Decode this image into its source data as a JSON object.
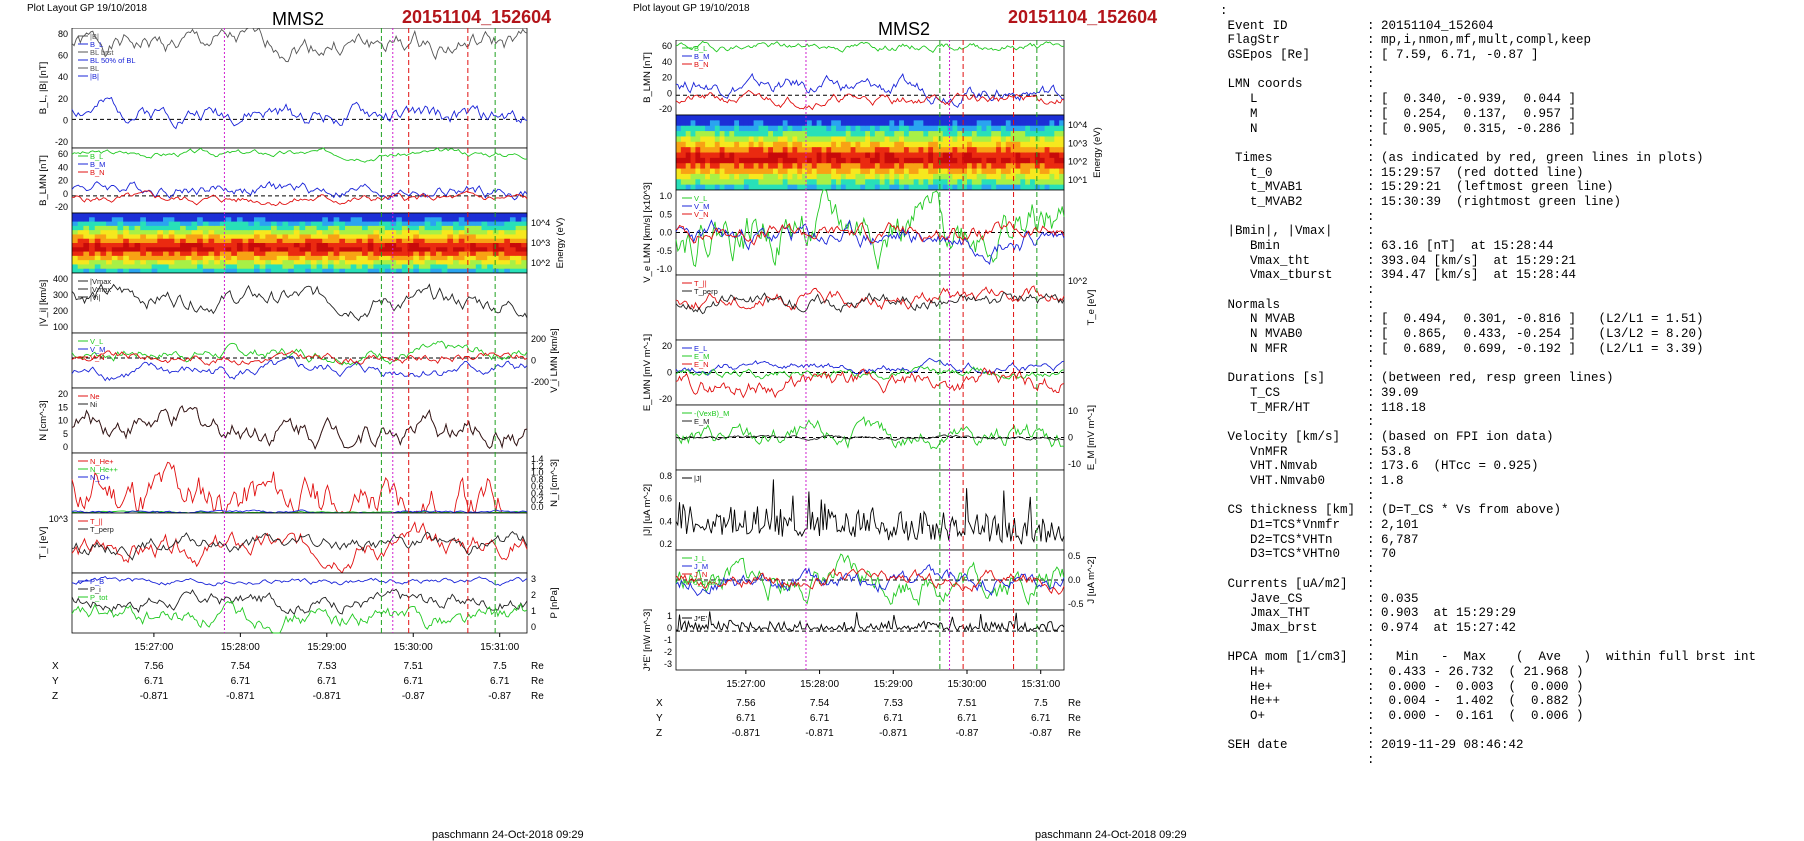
{
  "left_panel": {
    "header": "Plot Layout GP 19/10/2018",
    "spacecraft": "MMS2",
    "event": "20151104_152604",
    "footer": "paschmann 24-Oct-2018 09:29",
    "time_labels": [
      "15:27:00",
      "15:28:00",
      "15:29:00",
      "15:30:00",
      "15:31:00"
    ],
    "pos_rows": [
      {
        "label": "X",
        "values": [
          "7.56",
          "7.54",
          "7.53",
          "7.51",
          "7.5"
        ],
        "unit": "Re"
      },
      {
        "label": "Y",
        "values": [
          "6.71",
          "6.71",
          "6.71",
          "6.71",
          "6.71"
        ],
        "unit": "Re"
      },
      {
        "label": "Z",
        "values": [
          "-0.871",
          "-0.871",
          "-0.871",
          "-0.87",
          "-0.87"
        ],
        "unit": "Re"
      }
    ]
  },
  "mid_panel": {
    "header": "Plot layout GP 19/10/2018",
    "spacecraft": "MMS2",
    "event": "20151104_152604",
    "footer": "paschmann 24-Oct-2018 09:29",
    "time_labels": [
      "15:27:00",
      "15:28:00",
      "15:29:00",
      "15:30:00",
      "15:31:00"
    ],
    "pos_rows": [
      {
        "label": "X",
        "values": [
          "7.56",
          "7.54",
          "7.53",
          "7.51",
          "7.5"
        ],
        "unit": "Re"
      },
      {
        "label": "Y",
        "values": [
          "6.71",
          "6.71",
          "6.71",
          "6.71",
          "6.71"
        ],
        "unit": "Re"
      },
      {
        "label": "Z",
        "values": [
          "-0.871",
          "-0.871",
          "-0.871",
          "-0.87",
          "-0.87"
        ],
        "unit": "Re"
      }
    ]
  },
  "right_panel": {
    "top_mark": ":",
    "rows": [
      {
        "k": "Event ID",
        "c": ":",
        "v": "20151104_152604"
      },
      {
        "k": "FlagStr",
        "c": ":",
        "v": "mp,i,nmon,mf,mult,compl,keep"
      },
      {
        "k": "GSEpos [Re]",
        "c": ":",
        "v": "[ 7.59, 6.71, -0.87 ]"
      },
      {
        "k": "",
        "c": ":",
        "v": ""
      },
      {
        "k": "LMN coords",
        "c": ":",
        "v": ""
      },
      {
        "k": "   L",
        "c": ":",
        "v": "[  0.340, -0.939,  0.044 ]"
      },
      {
        "k": "   M",
        "c": ":",
        "v": "[  0.254,  0.137,  0.957 ]"
      },
      {
        "k": "   N",
        "c": ":",
        "v": "[  0.905,  0.315, -0.286 ]"
      },
      {
        "k": "",
        "c": ":",
        "v": ""
      },
      {
        "k": " Times",
        "c": ":",
        "v": "(as indicated by red, green lines in plots)"
      },
      {
        "k": "   t_0",
        "c": ":",
        "v": "15:29:57  (red dotted line)"
      },
      {
        "k": "   t_MVAB1",
        "c": ":",
        "v": "15:29:21  (leftmost green line)"
      },
      {
        "k": "   t_MVAB2",
        "c": ":",
        "v": "15:30:39  (rightmost green line)"
      },
      {
        "k": "",
        "c": ":",
        "v": ""
      },
      {
        "k": "|Bmin|, |Vmax|",
        "c": ":",
        "v": ""
      },
      {
        "k": "   Bmin",
        "c": ":",
        "v": "63.16 [nT]  at 15:28:44"
      },
      {
        "k": "   Vmax_tht",
        "c": ":",
        "v": "393.04 [km/s]  at 15:29:21"
      },
      {
        "k": "   Vmax_tburst",
        "c": ":",
        "v": "394.47 [km/s]  at 15:28:44"
      },
      {
        "k": "",
        "c": ":",
        "v": ""
      },
      {
        "k": "Normals",
        "c": ":",
        "v": ""
      },
      {
        "k": "   N MVAB",
        "c": ":",
        "v": "[  0.494,  0.301, -0.816 ]   (L2/L1 = 1.51)"
      },
      {
        "k": "   N MVAB0",
        "c": ":",
        "v": "[  0.865,  0.433, -0.254 ]   (L3/L2 = 8.20)"
      },
      {
        "k": "   N MFR",
        "c": ":",
        "v": "[  0.689,  0.699, -0.192 ]   (L2/L1 = 3.39)"
      },
      {
        "k": "",
        "c": ":",
        "v": ""
      },
      {
        "k": "Durations [s]",
        "c": ":",
        "v": "(between red, resp green lines)"
      },
      {
        "k": "   T_CS",
        "c": ":",
        "v": "39.09"
      },
      {
        "k": "   T_MFR/HT",
        "c": ":",
        "v": "118.18"
      },
      {
        "k": "",
        "c": ":",
        "v": ""
      },
      {
        "k": "Velocity [km/s]",
        "c": ":",
        "v": "(based on FPI ion data)"
      },
      {
        "k": "   VnMFR",
        "c": ":",
        "v": "53.8"
      },
      {
        "k": "   VHT.Nmvab",
        "c": ":",
        "v": "173.6  (HTcc = 0.925)"
      },
      {
        "k": "   VHT.Nmvab0",
        "c": ":",
        "v": "1.8"
      },
      {
        "k": "",
        "c": ":",
        "v": ""
      },
      {
        "k": "CS thickness [km]",
        "c": ":",
        "v": "(D=T_CS * Vs from above)"
      },
      {
        "k": "   D1=TCS*Vnmfr",
        "c": ":",
        "v": "2,101"
      },
      {
        "k": "   D2=TCS*VHTn",
        "c": ":",
        "v": "6,787"
      },
      {
        "k": "   D3=TCS*VHTn0",
        "c": ":",
        "v": "70"
      },
      {
        "k": "",
        "c": ":",
        "v": ""
      },
      {
        "k": "Currents [uA/m2]",
        "c": ":",
        "v": ""
      },
      {
        "k": "   Jave_CS",
        "c": ":",
        "v": "0.035"
      },
      {
        "k": "   Jmax_THT",
        "c": ":",
        "v": "0.903  at 15:29:29"
      },
      {
        "k": "   Jmax_brst",
        "c": ":",
        "v": "0.974  at 15:27:42"
      },
      {
        "k": "",
        "c": ":",
        "v": ""
      },
      {
        "k": "HPCA mom [1/cm3]",
        "c": ":",
        "v": "  Min   -  Max    (  Ave   )  within full brst int"
      },
      {
        "k": "   H+",
        "c": ":",
        "v": " 0.433 - 26.732  ( 21.968 )"
      },
      {
        "k": "   He+",
        "c": ":",
        "v": " 0.000 -  0.003  (  0.000 )"
      },
      {
        "k": "   He++",
        "c": ":",
        "v": " 0.004 -  1.402  (  0.882 )"
      },
      {
        "k": "   O+",
        "c": ":",
        "v": " 0.000 -  0.161  (  0.006 )"
      },
      {
        "k": "",
        "c": ":",
        "v": ""
      },
      {
        "k": "SEH date",
        "c": ":",
        "v": "2019-11-29 08:46:42"
      },
      {
        "k": "",
        "c": ":",
        "v": ""
      }
    ]
  },
  "colors": {
    "title_red": "#b3141a",
    "bg": "#ffffff"
  },
  "chart_data": [
    {
      "type": "line",
      "id": "L1",
      "ylabel": "B_L, |B| [nT]",
      "yticks": [
        "80",
        "60",
        "40",
        "20",
        "0",
        "-20"
      ],
      "legend": [
        "|B|",
        "B_L",
        "BL brst",
        "BL 50% of BL",
        "BL",
        "|B|"
      ],
      "ylim": [
        -25,
        80
      ],
      "series": [
        {
          "color": "#555555",
          "base": 66,
          "amp": 6,
          "seed": 1,
          "trend": 0
        },
        {
          "color": "#1a24d8",
          "base": 10,
          "amp": 5,
          "seed": 2,
          "trend": -1
        }
      ]
    },
    {
      "type": "line",
      "id": "L2",
      "ylabel": "B_LMN [nT]",
      "yticks": [
        "60",
        "40",
        "20",
        "0",
        "-20"
      ],
      "legend": [
        "B_L",
        "B_M",
        "B_N"
      ],
      "ylim": [
        -25,
        70
      ],
      "series": [
        {
          "color": "#22c922",
          "base": 62,
          "amp": 3,
          "seed": 3,
          "trend": 0
        },
        {
          "color": "#1a24d8",
          "base": 15,
          "amp": 6,
          "seed": 4,
          "trend": -1
        },
        {
          "color": "#e01010",
          "base": -5,
          "amp": 4,
          "seed": 5,
          "trend": 0
        }
      ]
    },
    {
      "type": "heatmap",
      "id": "L3",
      "ylabel": "Energy (eV)",
      "yticks": [
        "10^4",
        "10^3",
        "10^2"
      ]
    },
    {
      "type": "line",
      "id": "L4",
      "ylabel": "|V_i| [km/s]",
      "yticks": [
        "400",
        "300",
        "200",
        "100"
      ],
      "legend": [
        "|Vmax",
        "|Vmax",
        "|Vi|"
      ],
      "ylim": [
        0,
        400
      ],
      "series": [
        {
          "color": "#222222",
          "base": 260,
          "amp": 40,
          "seed": 6,
          "trend": -0.8
        }
      ]
    },
    {
      "type": "line",
      "id": "L5",
      "ylabel": "V_i LMN [km/s]",
      "yticks_right": [
        "200",
        "0",
        "-200"
      ],
      "legend": [
        "V_L",
        "V_M",
        "V_N"
      ],
      "ylim": [
        -300,
        250
      ],
      "series": [
        {
          "color": "#22c922",
          "base": 50,
          "amp": 40,
          "seed": 7,
          "trend": 0
        },
        {
          "color": "#1a24d8",
          "base": -150,
          "amp": 40,
          "seed": 8,
          "trend": 0.6
        },
        {
          "color": "#e01010",
          "base": 0,
          "amp": 30,
          "seed": 9,
          "trend": 0
        }
      ]
    },
    {
      "type": "line",
      "id": "L6",
      "ylabel": "N [cm^-3]",
      "yticks": [
        "20",
        "15",
        "10",
        "5",
        "0"
      ],
      "legend": [
        "Ne",
        "Ni"
      ],
      "ylim": [
        0,
        20
      ],
      "series": [
        {
          "color": "#e01010",
          "base": 10,
          "amp": 2.5,
          "seed": 10,
          "trend": -0.8
        },
        {
          "color": "#222222",
          "base": 10,
          "amp": 2.5,
          "seed": 10,
          "trend": -0.8
        }
      ]
    },
    {
      "type": "line",
      "id": "L7",
      "ylabel": "N_i [cm^-3]",
      "yticks_right": [
        "1.4",
        "1.2",
        "1.0",
        "0.8",
        "0.6",
        "0.4",
        "0.2",
        "0.0"
      ],
      "legend": [
        "N_He+",
        "N_He++",
        "N_O+"
      ],
      "ylim": [
        0,
        1.4
      ],
      "series": [
        {
          "color": "#e01010",
          "base": 0.5,
          "amp": 0.35,
          "seed": 11,
          "trend": -0.5
        },
        {
          "color": "#22c922",
          "base": 0.02,
          "amp": 0.01,
          "seed": 12,
          "trend": 0
        },
        {
          "color": "#1a24d8",
          "base": 0.03,
          "amp": 0.02,
          "seed": 13,
          "trend": 0
        }
      ]
    },
    {
      "type": "line",
      "id": "L8",
      "ylabel": "T_i [eV]",
      "yticks": [
        "10^3"
      ],
      "legend": [
        "T_||",
        "T_perp"
      ],
      "ylim": [
        0,
        100
      ],
      "series": [
        {
          "color": "#e01010",
          "base": 35,
          "amp": 12,
          "seed": 14,
          "trend": 0.6
        },
        {
          "color": "#222222",
          "base": 45,
          "amp": 8,
          "seed": 15,
          "trend": 0.5
        }
      ]
    },
    {
      "type": "line",
      "id": "L9",
      "ylabel": "P [nPa]",
      "yticks_right": [
        "3",
        "2",
        "1",
        "0"
      ],
      "legend": [
        "P_B",
        "P_i",
        "P_tot"
      ],
      "ylim": [
        0,
        3
      ],
      "series": [
        {
          "color": "#1a24d8",
          "base": 2.6,
          "amp": 0.1,
          "seed": 16,
          "trend": 0
        },
        {
          "color": "#222222",
          "base": 1.6,
          "amp": 0.25,
          "seed": 17,
          "trend": 0
        },
        {
          "color": "#22c922",
          "base": 0.8,
          "amp": 0.3,
          "seed": 18,
          "trend": 0
        }
      ]
    },
    {
      "type": "line",
      "id": "M1",
      "ylabel": "B_LMN [nT]",
      "yticks": [
        "60",
        "40",
        "20",
        "0",
        "-20"
      ],
      "legend": [
        "B_L",
        "B_M",
        "B_N"
      ],
      "ylim": [
        -25,
        70
      ],
      "series": [
        {
          "color": "#22c922",
          "base": 62,
          "amp": 3,
          "seed": 19,
          "trend": 0
        },
        {
          "color": "#1a24d8",
          "base": 15,
          "amp": 6,
          "seed": 20,
          "trend": -1
        },
        {
          "color": "#e01010",
          "base": -5,
          "amp": 4,
          "seed": 21,
          "trend": 0
        }
      ]
    },
    {
      "type": "heatmap",
      "id": "M2",
      "ylabel": "Energy (eV)",
      "yticks_right": [
        "10^4",
        "10^3",
        "10^2",
        "10^1"
      ]
    },
    {
      "type": "line",
      "id": "M3",
      "ylabel": "V_e LMN [km/s] [x10^3]",
      "yticks": [
        "1.0",
        "0.5",
        "0.0",
        "-0.5",
        "-1.0"
      ],
      "legend": [
        "V_L",
        "V_M",
        "V_N"
      ],
      "ylim": [
        -1.3,
        1.3
      ],
      "series": [
        {
          "color": "#22c922",
          "base": 0.15,
          "amp": 0.45,
          "seed": 22,
          "trend": 0
        },
        {
          "color": "#1a24d8",
          "base": -0.15,
          "amp": 0.2,
          "seed": 23,
          "trend": 0
        },
        {
          "color": "#e01010",
          "base": 0,
          "amp": 0.15,
          "seed": 24,
          "trend": 0
        }
      ]
    },
    {
      "type": "line",
      "id": "M4",
      "ylabel": "T_e [eV]",
      "yticks_right": [
        "10^2"
      ],
      "legend": [
        "T_||",
        "T_perp"
      ],
      "ylim": [
        0,
        100
      ],
      "series": [
        {
          "color": "#e01010",
          "base": 60,
          "amp": 7,
          "seed": 25,
          "trend": 0.5
        },
        {
          "color": "#222222",
          "base": 57,
          "amp": 7,
          "seed": 26,
          "trend": 0.5
        }
      ]
    },
    {
      "type": "line",
      "id": "M5",
      "ylabel": "E_LMN [mV m^-1]",
      "yticks": [
        "20",
        "0",
        "-20"
      ],
      "legend": [
        "E_L",
        "E_M",
        "E_N"
      ],
      "ylim": [
        -35,
        35
      ],
      "series": [
        {
          "color": "#1a24d8",
          "base": 5,
          "amp": 3,
          "seed": 27,
          "trend": 0
        },
        {
          "color": "#22c922",
          "base": 0,
          "amp": 3,
          "seed": 28,
          "trend": 0
        },
        {
          "color": "#e01010",
          "base": -15,
          "amp": 6,
          "seed": 29,
          "trend": 0.5
        }
      ]
    },
    {
      "type": "line",
      "id": "M6",
      "ylabel": "E_M [mV m^-1]",
      "yticks_right": [
        "10",
        "0",
        "-10"
      ],
      "legend": [
        "-(VexB)_M",
        "E_M"
      ],
      "ylim": [
        -15,
        15
      ],
      "series": [
        {
          "color": "#22c922",
          "base": 0,
          "amp": 3,
          "seed": 30,
          "trend": 0
        },
        {
          "color": "#222222",
          "base": 0,
          "amp": 0.5,
          "seed": 31,
          "trend": 0
        }
      ]
    },
    {
      "type": "line",
      "id": "M7",
      "ylabel": "|J| [uA m^-2]",
      "yticks": [
        "0.8",
        "0.6",
        "0.4",
        "0.2"
      ],
      "legend": [
        "|J|"
      ],
      "ylim": [
        0,
        0.9
      ],
      "series": [
        {
          "color": "#000000",
          "base": 0.18,
          "amp": 0.22,
          "seed": 32,
          "trend": -0.6,
          "spiky": true
        }
      ]
    },
    {
      "type": "line",
      "id": "M8",
      "ylabel": "J [uA m^-2]",
      "yticks_right": [
        "0.5",
        "0.0",
        "-0.5"
      ],
      "legend": [
        "J_L",
        "J_M",
        "J_N",
        "J_maxJ"
      ],
      "ylim": [
        -0.8,
        0.8
      ],
      "series": [
        {
          "color": "#22c922",
          "base": 0,
          "amp": 0.25,
          "seed": 33,
          "trend": 0
        },
        {
          "color": "#1a24d8",
          "base": 0,
          "amp": 0.15,
          "seed": 34,
          "trend": 0
        },
        {
          "color": "#e01010",
          "base": 0,
          "amp": 0.12,
          "seed": 35,
          "trend": 0
        }
      ]
    },
    {
      "type": "line",
      "id": "M9",
      "ylabel": "J*E' [nW m^-3]",
      "yticks": [
        "1",
        "0",
        "-1",
        "-2",
        "-3"
      ],
      "legend": [
        "J*E'"
      ],
      "ylim": [
        -3.3,
        1.8
      ],
      "series": [
        {
          "color": "#000000",
          "base": 0,
          "amp": 0.55,
          "seed": 36,
          "trend": 0,
          "spiky": true
        }
      ]
    }
  ]
}
